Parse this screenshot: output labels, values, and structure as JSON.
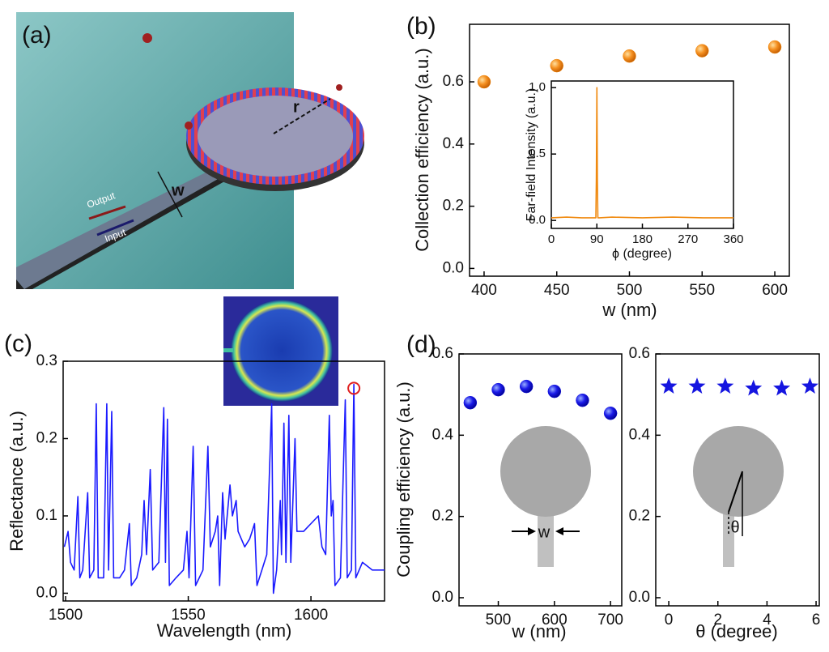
{
  "panel_a": {
    "label": "(a)",
    "radius_label": "r",
    "width_label": "w",
    "output_label": "Output",
    "input_label": "Input"
  },
  "chart_data": [
    {
      "type": "scatter",
      "label": "(b)",
      "xlabel": "w (nm)",
      "ylabel": "Collection efficiency (a.u.)",
      "x": [
        400,
        450,
        500,
        550,
        600
      ],
      "values": [
        0.6,
        0.652,
        0.683,
        0.7,
        0.712
      ],
      "marker": "circle",
      "color": "#f08a10",
      "xlim": [
        390,
        610
      ],
      "xticks": [
        400,
        450,
        500,
        550,
        600
      ],
      "ylim": [
        -0.025,
        0.785
      ],
      "yticks": [
        {
          "value": 0,
          "label": "0.0"
        },
        0.2,
        0.4,
        0.6
      ]
    },
    {
      "type": "line",
      "xlabel": "ϕ (degree)",
      "ylabel": "Far-field Intensity (a.u.)",
      "x": [
        0,
        30,
        60,
        85,
        88,
        89,
        90,
        91,
        92,
        95,
        120,
        180,
        240,
        300,
        360
      ],
      "values": [
        0.02,
        0.025,
        0.02,
        0.02,
        0.02,
        0.3,
        1.0,
        0.3,
        0.02,
        0.02,
        0.025,
        0.02,
        0.025,
        0.02,
        0.02
      ],
      "color": "#f08a10",
      "xlim": [
        0,
        360
      ],
      "xticks": [
        0,
        90,
        180,
        270,
        360
      ],
      "ylim": [
        -0.06,
        1.05
      ],
      "yticks": [
        {
          "value": 0,
          "label": "0.0"
        },
        0.5,
        {
          "value": 1,
          "label": "1.0"
        }
      ]
    },
    {
      "type": "line",
      "label": "(c)",
      "xlabel": "Wavelength (nm)",
      "ylabel": "Reflectance (a.u.)",
      "x": [
        1499.5,
        1501,
        1502,
        1503.5,
        1505,
        1505.8,
        1507,
        1509,
        1509.8,
        1511.5,
        1512.5,
        1513.3,
        1515.5,
        1516.8,
        1517.5,
        1518.8,
        1519.6,
        1522,
        1524,
        1526,
        1526.8,
        1529,
        1531,
        1532,
        1533,
        1534.5,
        1535.5,
        1538,
        1540,
        1540.7,
        1541.5,
        1542.3,
        1545,
        1548,
        1549.5,
        1550.3,
        1552,
        1553,
        1556,
        1558,
        1559,
        1561,
        1562,
        1562.8,
        1564,
        1565,
        1567,
        1568,
        1569.5,
        1570.3,
        1573,
        1575,
        1576,
        1577,
        1578,
        1580,
        1582,
        1584,
        1584.7,
        1586,
        1587.5,
        1588,
        1589,
        1589.8,
        1591,
        1591.8,
        1593.5,
        1594.3,
        1597,
        1600,
        1603,
        1604.5,
        1606,
        1607.5,
        1608.3,
        1609,
        1609.8,
        1612,
        1614,
        1614.8,
        1616.5,
        1617.5,
        1618.3,
        1621,
        1625,
        1630
      ],
      "values": [
        0.06,
        0.08,
        0.04,
        0.03,
        0.125,
        0.02,
        0.03,
        0.13,
        0.02,
        0.03,
        0.245,
        0.02,
        0.02,
        0.245,
        0.03,
        0.235,
        0.02,
        0.02,
        0.03,
        0.09,
        0.01,
        0.02,
        0.05,
        0.12,
        0.05,
        0.16,
        0.03,
        0.04,
        0.24,
        0.04,
        0.225,
        0.01,
        0.02,
        0.03,
        0.08,
        0.02,
        0.19,
        0.01,
        0.03,
        0.19,
        0.06,
        0.08,
        0.1,
        0.01,
        0.13,
        0.07,
        0.14,
        0.1,
        0.12,
        0.08,
        0.06,
        0.07,
        0.08,
        0.09,
        0.01,
        0.03,
        0.05,
        0.245,
        0.0,
        0.03,
        0.12,
        0.05,
        0.22,
        0.04,
        0.23,
        0.04,
        0.2,
        0.08,
        0.08,
        0.09,
        0.1,
        0.06,
        0.05,
        0.23,
        0.1,
        0.12,
        0.01,
        0.02,
        0.25,
        0.02,
        0.03,
        0.27,
        0.02,
        0.04,
        0.03,
        0.03
      ],
      "color": "#1a1aff",
      "highlight": {
        "x": 1617.5,
        "y": 0.265,
        "color": "#e02020"
      },
      "xlim": [
        1499,
        1630
      ],
      "xticks": [
        1500,
        1550,
        1600
      ],
      "ylim": [
        -0.01,
        0.3
      ],
      "yticks": [
        {
          "value": 0,
          "label": "0.0"
        },
        0.1,
        0.2,
        0.3
      ]
    },
    {
      "type": "scatter",
      "label": "(d)",
      "xlabel": "w (nm)",
      "ylabel": "Coupling efficiency (a.u.)",
      "inset_label": "w",
      "x": [
        450,
        500,
        550,
        600,
        650,
        700
      ],
      "values": [
        0.48,
        0.512,
        0.52,
        0.508,
        0.486,
        0.454
      ],
      "marker": "circle",
      "color": "#1515e0",
      "xlim": [
        430,
        720
      ],
      "xticks": [
        500,
        600,
        700
      ],
      "ylim": [
        -0.02,
        0.6
      ],
      "yticks": [
        {
          "value": 0,
          "label": "0.0"
        },
        0.2,
        0.4,
        0.6
      ]
    },
    {
      "type": "scatter",
      "xlabel": "θ (degree)",
      "inset_label": "θ",
      "x": [
        0,
        1.15,
        2.3,
        3.45,
        4.6,
        5.75
      ],
      "values": [
        0.52,
        0.52,
        0.52,
        0.515,
        0.515,
        0.52
      ],
      "marker": "star",
      "color": "#1515e0",
      "xlim": [
        -0.53,
        6.13
      ],
      "xticks": [
        0,
        2,
        4,
        6
      ],
      "ylim": [
        -0.02,
        0.6
      ],
      "yticks": [
        {
          "value": 0,
          "label": "0.0"
        },
        0.2,
        0.4,
        0.6
      ]
    }
  ]
}
